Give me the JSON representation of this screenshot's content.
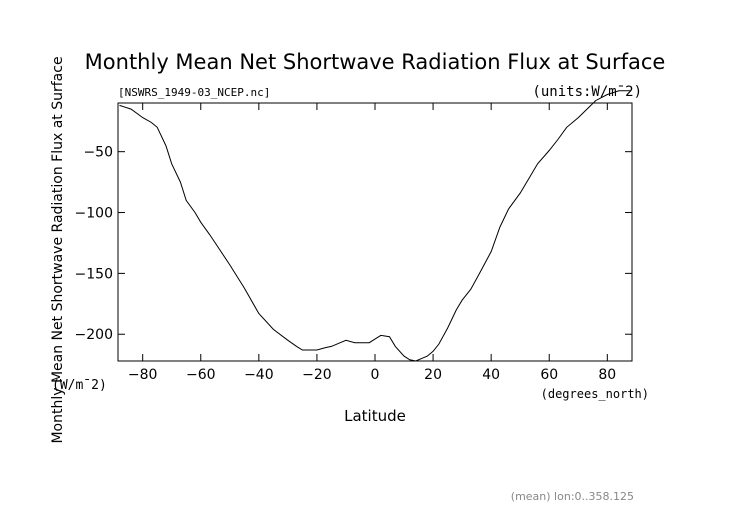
{
  "chart_data": {
    "type": "line",
    "title": "Monthly Mean Net Shortwave Radiation Flux at Surface",
    "subtitle_left": "[NSWRS_1949-03_NCEP.nc]",
    "subtitle_right": "(units:W/m¯2)",
    "ylabel": "Monthly Mean Net Shortwave Radiation Flux at Surface",
    "ylabel_units": "(W/m¯2)",
    "xlabel": "Latitude",
    "xlabel_units": "(degrees_north)",
    "footer": "(mean) lon:0..358.125",
    "xlim": [
      -88.5,
      88.5
    ],
    "ylim": [
      -222,
      -10
    ],
    "xticks": [
      -80,
      -60,
      -40,
      -20,
      0,
      20,
      40,
      60,
      80
    ],
    "xtick_labels": [
      "−80",
      "−60",
      "−40",
      "−20",
      "0",
      "20",
      "40",
      "60",
      "80"
    ],
    "yticks": [
      -50,
      -100,
      -150,
      -200
    ],
    "ytick_labels": [
      "−50",
      "−100",
      "−150",
      "−200"
    ],
    "series": [
      {
        "x": [
          -88,
          -84,
          -80,
          -77,
          -75,
          -72,
          -70,
          -67,
          -65,
          -62,
          -60,
          -57,
          -55,
          -50,
          -45,
          -40,
          -35,
          -30,
          -27,
          -25,
          -22,
          -20,
          -17,
          -15,
          -12,
          -10,
          -7,
          -5,
          -2,
          0,
          2,
          5,
          7,
          10,
          12,
          14,
          16,
          18,
          20,
          22,
          25,
          28,
          30,
          33,
          36,
          40,
          43,
          46,
          50,
          53,
          56,
          60,
          63,
          66,
          70,
          73,
          76,
          80,
          84,
          88
        ],
        "y": [
          -12,
          -15,
          -22,
          -26,
          -30,
          -45,
          -60,
          -75,
          -90,
          -100,
          -108,
          -118,
          -125,
          -143,
          -162,
          -183,
          -196,
          -205,
          -210,
          -213,
          -213,
          -213,
          -211,
          -210,
          -207,
          -205,
          -207,
          -207,
          -207,
          -204,
          -201,
          -202,
          -210,
          -218,
          -221,
          -222,
          -220,
          -218,
          -214,
          -208,
          -195,
          -180,
          -172,
          -163,
          -150,
          -132,
          -112,
          -97,
          -84,
          -72,
          -60,
          -49,
          -40,
          -30,
          -22,
          -15,
          -8,
          -3,
          0,
          0
        ]
      }
    ]
  }
}
